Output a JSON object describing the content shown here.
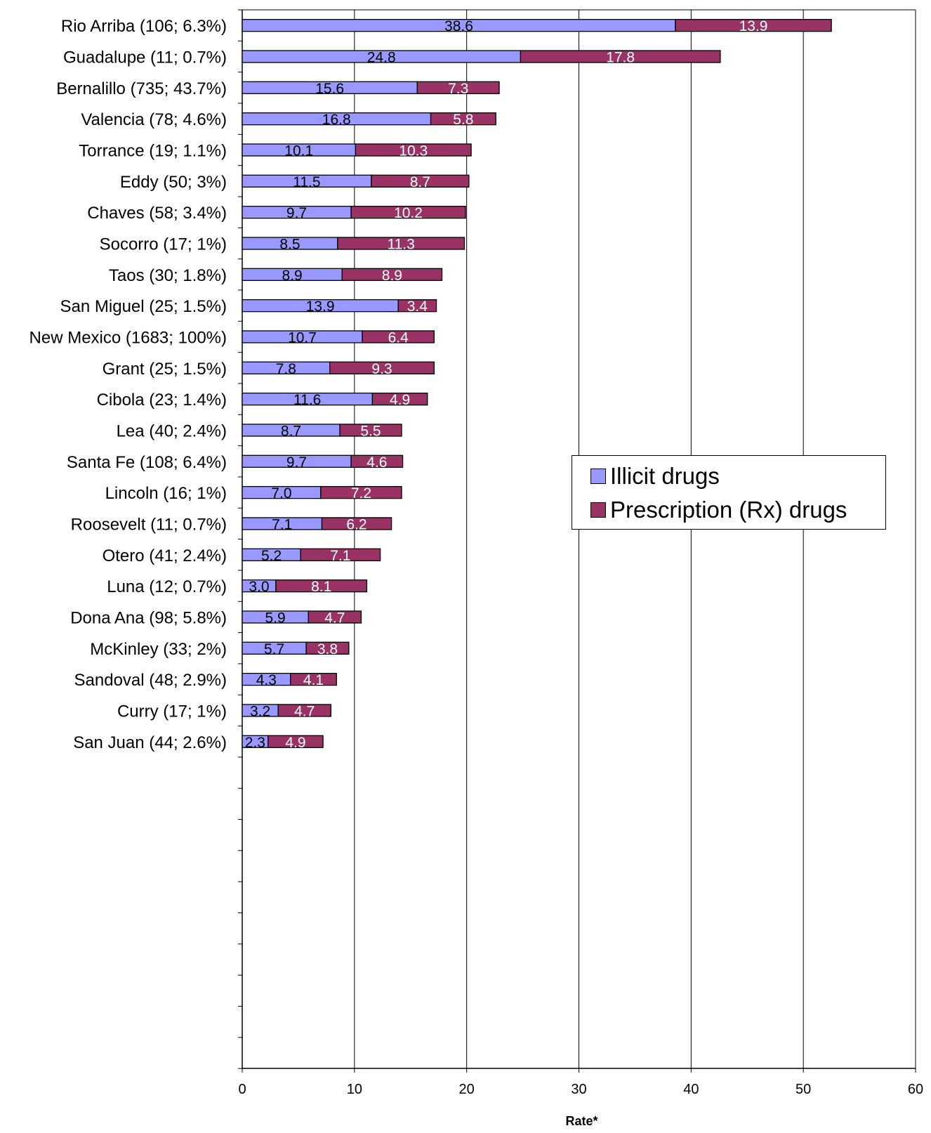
{
  "chart_data": {
    "type": "bar",
    "orientation": "horizontal",
    "stacked": true,
    "categories": [
      "Rio Arriba (106; 6.3%)",
      "Guadalupe (11; 0.7%)",
      "Bernalillo (735; 43.7%)",
      "Valencia (78; 4.6%)",
      "Torrance (19; 1.1%)",
      "Eddy (50; 3%)",
      "Chaves (58; 3.4%)",
      "Socorro (17; 1%)",
      "Taos (30; 1.8%)",
      "San Miguel (25; 1.5%)",
      "New Mexico (1683; 100%)",
      "Grant (25; 1.5%)",
      "Cibola (23; 1.4%)",
      "Lea (40; 2.4%)",
      "Santa Fe (108; 6.4%)",
      "Lincoln (16; 1%)",
      "Roosevelt (11; 0.7%)",
      "Otero (41; 2.4%)",
      "Luna (12; 0.7%)",
      "Dona Ana (98; 5.8%)",
      "McKinley (33; 2%)",
      "Sandoval (48; 2.9%)",
      "Curry (17; 1%)",
      "San Juan (44; 2.6%)"
    ],
    "series": [
      {
        "name": "Illicit drugs",
        "color": "#9999ff",
        "values": [
          38.6,
          24.8,
          15.6,
          16.8,
          10.1,
          11.5,
          9.7,
          8.5,
          8.9,
          13.9,
          10.7,
          7.8,
          11.6,
          8.7,
          9.7,
          7.0,
          7.1,
          5.2,
          3.0,
          5.9,
          5.7,
          4.3,
          3.2,
          2.3
        ],
        "labels": [
          "38.6",
          "24.8",
          "15.6",
          "16.8",
          "10.1",
          "11.5",
          "9.7",
          "8.5",
          "8.9",
          "13.9",
          "10.7",
          "7.8",
          "11.6",
          "8.7",
          "9.7",
          "7.0",
          "7.1",
          "5.2",
          "3.0",
          "5.9",
          "5.7",
          "4.3",
          "3.2",
          "2.3"
        ],
        "label_color": "#000000"
      },
      {
        "name": "Prescription (Rx) drugs",
        "color": "#993366",
        "values": [
          13.9,
          17.8,
          7.3,
          5.8,
          10.3,
          8.7,
          10.2,
          11.3,
          8.9,
          3.4,
          6.4,
          9.3,
          4.9,
          5.5,
          4.6,
          7.2,
          6.2,
          7.1,
          8.1,
          4.7,
          3.8,
          4.1,
          4.7,
          4.9
        ],
        "labels": [
          "13.9",
          "17.8",
          "7.3",
          "5.8",
          "10.3",
          "8.7",
          "10.2",
          "11.3",
          "8.9",
          "3.4",
          "6.4",
          "9.3",
          "4.9",
          "5.5",
          "4.6",
          "7.2",
          "6.2",
          "7.1",
          "8.1",
          "4.7",
          "3.8",
          "4.1",
          "4.7",
          "4.9"
        ],
        "label_color": "#ffffff"
      }
    ],
    "xlabel": "Rate*",
    "xlim": [
      0,
      60
    ],
    "xticks": [
      "0",
      "10",
      "20",
      "30",
      "40",
      "50",
      "60"
    ],
    "grid": "vertical",
    "legend_position": "right-center",
    "category_slots": 34
  }
}
